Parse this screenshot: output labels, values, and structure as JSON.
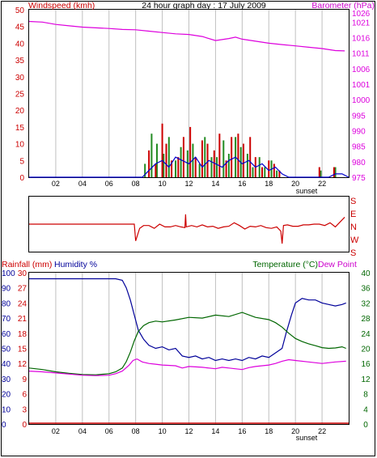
{
  "colors": {
    "windspeed": "#cc0000",
    "gust": "#228b22",
    "wind_avg": "#0000cc",
    "barometer": "#dd00dd",
    "direction": "#cc0000",
    "rainfall": "#cc0000",
    "humidity": "#000099",
    "temperature": "#006600",
    "dewpoint": "#dd00dd",
    "grid": "#c0c0c0",
    "frame": "#000000"
  },
  "chart_data": [
    {
      "type": "bar",
      "title": "24 hour graph day : 17 July 2009",
      "ylabel": "Windspeed (kmh)",
      "ylabel_right": "Barometer (hPa)",
      "x_ticks": [
        "02",
        "04",
        "06",
        "08",
        "10",
        "12",
        "14",
        "16",
        "18",
        "20",
        "22"
      ],
      "x_annotation": "sunset",
      "xlim": [
        0,
        24
      ],
      "ylim": [
        0,
        50
      ],
      "yticks": [
        "0",
        "5",
        "10",
        "15",
        "20",
        "25",
        "30",
        "35",
        "40",
        "45",
        "50"
      ],
      "ylim_right": [
        975,
        1025
      ],
      "yticks_right": [
        "975",
        "980",
        "985",
        "990",
        "995",
        "1000",
        "1001",
        "1006",
        "1011",
        "1016",
        "1021",
        "1026"
      ],
      "grid": true,
      "series": [
        {
          "key": "gust",
          "type": "bar",
          "x": [
            8.7,
            9.2,
            9.6,
            10.1,
            10.5,
            11.0,
            11.4,
            11.9,
            12.3,
            12.8,
            13.2,
            13.7,
            14.1,
            14.6,
            15.0,
            15.5,
            15.9,
            16.4,
            16.8,
            17.3,
            17.7,
            18.2,
            18.6,
            21.9,
            23.0
          ],
          "values": [
            4,
            13,
            10,
            7,
            12,
            5,
            9,
            8,
            10,
            4,
            12,
            6,
            6,
            11,
            7,
            12,
            9,
            7,
            3,
            6,
            3,
            5,
            2,
            2,
            3
          ]
        },
        {
          "key": "windspeed",
          "type": "bar",
          "x": [
            9.0,
            9.5,
            10.0,
            10.3,
            10.7,
            11.2,
            11.6,
            12.1,
            12.5,
            13.0,
            13.4,
            13.9,
            14.3,
            14.8,
            15.2,
            15.7,
            16.1,
            16.6,
            17.0,
            17.5,
            18.0,
            18.4,
            18.8,
            21.8,
            22.9
          ],
          "values": [
            8,
            4,
            16,
            10,
            5,
            6,
            12,
            15,
            6,
            11,
            10,
            8,
            13,
            5,
            12,
            13,
            10,
            12,
            6,
            3,
            5,
            4,
            2,
            3,
            3
          ]
        },
        {
          "key": "wind_avg",
          "type": "line",
          "x": [
            0,
            8.5,
            9.0,
            9.5,
            10.0,
            10.5,
            11.0,
            11.5,
            12.0,
            12.5,
            13.0,
            13.5,
            14.0,
            14.5,
            15.0,
            15.5,
            16.0,
            16.5,
            17.0,
            17.5,
            18.0,
            18.5,
            19.0,
            19.5,
            21.5,
            22.5,
            23.0,
            23.5,
            24.0
          ],
          "values": [
            0,
            0,
            2,
            4,
            5,
            3,
            6,
            5,
            4,
            6,
            3,
            5,
            4,
            3,
            5,
            6,
            4,
            5,
            3,
            4,
            2,
            3,
            1,
            0,
            0,
            0,
            1,
            1,
            0
          ]
        },
        {
          "key": "barometer",
          "type": "line",
          "x": [
            0,
            1,
            2,
            3,
            4,
            5,
            6,
            7,
            8,
            9,
            10,
            11,
            12,
            13,
            14,
            15,
            15.5,
            16,
            17,
            18,
            19,
            20,
            21,
            22,
            23,
            23.7
          ],
          "values": [
            1021.5,
            1021.3,
            1020.6,
            1020.2,
            1019.8,
            1019.6,
            1019.4,
            1019.1,
            1019.0,
            1018.6,
            1018.2,
            1017.8,
            1017.6,
            1017.0,
            1015.8,
            1016.4,
            1016.8,
            1016.2,
            1015.6,
            1015.0,
            1014.6,
            1014.2,
            1013.8,
            1013.4,
            1012.8,
            1012.7
          ]
        }
      ]
    },
    {
      "type": "line",
      "title": "",
      "ylabel_right_ticks": [
        "S",
        "E",
        "N",
        "W",
        "S"
      ],
      "xlim": [
        0,
        24
      ],
      "ylim": [
        0,
        360
      ],
      "grid": false,
      "series": [
        {
          "key": "direction",
          "x": [
            0,
            7.9,
            8.0,
            8.3,
            8.6,
            9.0,
            9.4,
            9.8,
            10.2,
            10.6,
            11.0,
            11.4,
            11.7,
            11.75,
            11.8,
            12.2,
            12.6,
            13.0,
            13.4,
            13.8,
            14.2,
            14.6,
            15.0,
            15.4,
            15.8,
            16.2,
            16.6,
            17.0,
            17.4,
            17.8,
            18.2,
            18.6,
            18.9,
            19.0,
            19.1,
            19.4,
            19.8,
            20.2,
            20.6,
            21.0,
            21.4,
            21.8,
            22.2,
            22.6,
            23.0,
            23.4,
            23.7
          ],
          "values": [
            180,
            180,
            300,
            210,
            190,
            190,
            210,
            180,
            200,
            200,
            190,
            200,
            205,
            110,
            200,
            190,
            200,
            185,
            200,
            195,
            210,
            200,
            195,
            170,
            190,
            215,
            195,
            200,
            190,
            205,
            210,
            200,
            230,
            320,
            190,
            185,
            195,
            195,
            185,
            185,
            180,
            180,
            190,
            170,
            200,
            160,
            130
          ]
        }
      ]
    },
    {
      "type": "line",
      "title": "",
      "ylabel": "Rainfall (mm)",
      "ylabel_humidity": "Humidity %",
      "ylabel_right": "Temperature (°C)",
      "ylabel_right_dew": "Dew Point",
      "x_ticks": [
        "02",
        "04",
        "06",
        "08",
        "10",
        "12",
        "14",
        "16",
        "18",
        "20",
        "22"
      ],
      "x_annotation": "sunset",
      "xlim": [
        0,
        24
      ],
      "yticks_humidity": [
        "0",
        "10",
        "20",
        "30",
        "40",
        "50",
        "60",
        "70",
        "80",
        "90",
        "100"
      ],
      "yticks_rain": [
        "0",
        "3",
        "6",
        "9",
        "12",
        "15",
        "18",
        "21",
        "24",
        "27",
        "30"
      ],
      "yticks_temp": [
        "0",
        "4",
        "8",
        "12",
        "16",
        "20",
        "24",
        "28",
        "32",
        "36",
        "40"
      ],
      "ylim_humidity": [
        0,
        100
      ],
      "ylim_temp": [
        0,
        40
      ],
      "grid": true,
      "series": [
        {
          "key": "humidity",
          "x": [
            0,
            1,
            2,
            3,
            4,
            5,
            6,
            6.5,
            7.0,
            7.3,
            7.6,
            7.9,
            8.2,
            8.6,
            9.0,
            9.5,
            10.0,
            10.5,
            11.0,
            11.5,
            12.0,
            12.5,
            13.0,
            13.5,
            14.0,
            14.5,
            15.0,
            15.5,
            16.0,
            16.5,
            17.0,
            17.5,
            18.0,
            18.5,
            19.0,
            19.3,
            19.7,
            20.0,
            20.5,
            21.0,
            21.5,
            22.0,
            22.5,
            23.0,
            23.5,
            23.8
          ],
          "values": [
            96,
            96,
            96,
            96,
            96,
            96,
            96,
            96,
            95,
            90,
            82,
            72,
            62,
            56,
            52,
            50,
            51,
            49,
            50,
            45,
            44,
            45,
            43,
            44,
            42,
            43,
            42,
            43,
            42,
            44,
            43,
            45,
            44,
            47,
            50,
            60,
            72,
            80,
            83,
            82,
            82,
            80,
            79,
            78,
            79,
            80
          ]
        },
        {
          "key": "temperature",
          "x": [
            0,
            1,
            2,
            3,
            4,
            5,
            6,
            6.5,
            7.0,
            7.3,
            7.6,
            7.9,
            8.2,
            8.6,
            9.0,
            9.5,
            10.0,
            11.0,
            12.0,
            13.0,
            14.0,
            15.0,
            16.0,
            17.0,
            18.0,
            18.5,
            19.0,
            19.5,
            20.0,
            20.5,
            21.0,
            21.5,
            22.0,
            22.5,
            23.0,
            23.5,
            23.8
          ],
          "values": [
            14.8,
            14.4,
            13.8,
            13.4,
            13.1,
            13.0,
            13.3,
            13.8,
            14.8,
            16.5,
            19.0,
            22.0,
            24.5,
            26.0,
            26.8,
            27.2,
            27.0,
            27.5,
            28.2,
            28.0,
            28.8,
            28.4,
            29.5,
            28.2,
            27.6,
            26.8,
            25.6,
            24.0,
            22.6,
            21.8,
            21.2,
            20.7,
            20.2,
            20.0,
            20.1,
            20.4,
            20.0
          ]
        },
        {
          "key": "dewpoint",
          "x": [
            0,
            1,
            2,
            3,
            4,
            5,
            6,
            6.5,
            7.0,
            7.5,
            7.8,
            8.1,
            8.5,
            9.0,
            9.5,
            10.0,
            11.0,
            11.5,
            12.0,
            13.0,
            14.0,
            14.5,
            15.0,
            16.0,
            16.5,
            17.0,
            18.0,
            18.5,
            19.0,
            19.5,
            20.0,
            21.0,
            22.0,
            23.0,
            23.8
          ],
          "values": [
            14.0,
            13.8,
            13.5,
            13.2,
            12.9,
            12.8,
            12.9,
            13.3,
            14.0,
            15.5,
            16.8,
            17.2,
            16.4,
            16.0,
            15.8,
            15.6,
            15.4,
            14.8,
            15.2,
            15.0,
            14.6,
            15.0,
            14.8,
            14.4,
            14.9,
            15.2,
            15.6,
            16.0,
            16.6,
            17.0,
            16.8,
            16.4,
            16.0,
            16.4,
            16.6
          ]
        },
        {
          "key": "rainfall",
          "x": [
            0,
            24
          ],
          "values": [
            0,
            0
          ]
        }
      ]
    }
  ]
}
